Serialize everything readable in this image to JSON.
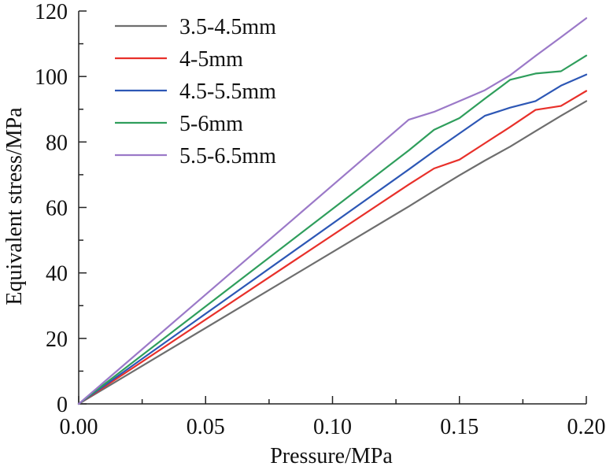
{
  "chart_data": {
    "type": "line",
    "title": "",
    "xlabel": "Pressure/MPa",
    "ylabel": "Equivalent stress/MPa",
    "xlim": [
      0,
      0.2
    ],
    "ylim": [
      0,
      120
    ],
    "x_ticks": [
      0,
      0.05,
      0.1,
      0.15,
      0.2
    ],
    "x_tick_labels": [
      "0.00",
      "0.05",
      "0.10",
      "0.15",
      "0.20"
    ],
    "y_ticks": [
      0,
      20,
      40,
      60,
      80,
      100,
      120
    ],
    "y_tick_labels": [
      "0",
      "20",
      "40",
      "60",
      "80",
      "100",
      "120"
    ],
    "grid": false,
    "legend_position": "top-left",
    "series": [
      {
        "name": "3.5-4.5mm",
        "color": "#6e6e6e",
        "x": [
          0,
          0.13,
          0.14,
          0.15,
          0.16,
          0.17,
          0.18,
          0.19,
          0.2
        ],
        "y": [
          0,
          60.3,
          65.1,
          69.8,
          74.3,
          78.6,
          83.3,
          88.0,
          92.5
        ]
      },
      {
        "name": "4-5mm",
        "color": "#e8302a",
        "x": [
          0,
          0.13,
          0.14,
          0.15,
          0.16,
          0.17,
          0.18,
          0.19,
          0.2
        ],
        "y": [
          0,
          67.0,
          71.9,
          74.6,
          79.6,
          84.6,
          89.8,
          91.0,
          95.6
        ]
      },
      {
        "name": "4.5-5.5mm",
        "color": "#2d57b5",
        "x": [
          0,
          0.13,
          0.14,
          0.15,
          0.16,
          0.17,
          0.18,
          0.19,
          0.2
        ],
        "y": [
          0,
          71.6,
          77.2,
          82.6,
          88.0,
          90.5,
          92.5,
          97.2,
          100.6
        ]
      },
      {
        "name": "5-6mm",
        "color": "#2f9e5c",
        "x": [
          0,
          0.13,
          0.14,
          0.15,
          0.16,
          0.17,
          0.18,
          0.19,
          0.2
        ],
        "y": [
          0,
          77.4,
          83.7,
          87.3,
          93.2,
          99.0,
          100.9,
          101.6,
          106.4
        ]
      },
      {
        "name": "5.5-6.5mm",
        "color": "#9b79c8",
        "x": [
          0,
          0.13,
          0.14,
          0.15,
          0.16,
          0.17,
          0.18,
          0.19,
          0.2
        ],
        "y": [
          0,
          86.8,
          89.2,
          92.5,
          95.8,
          100.4,
          106.3,
          112.0,
          117.8
        ]
      }
    ]
  }
}
